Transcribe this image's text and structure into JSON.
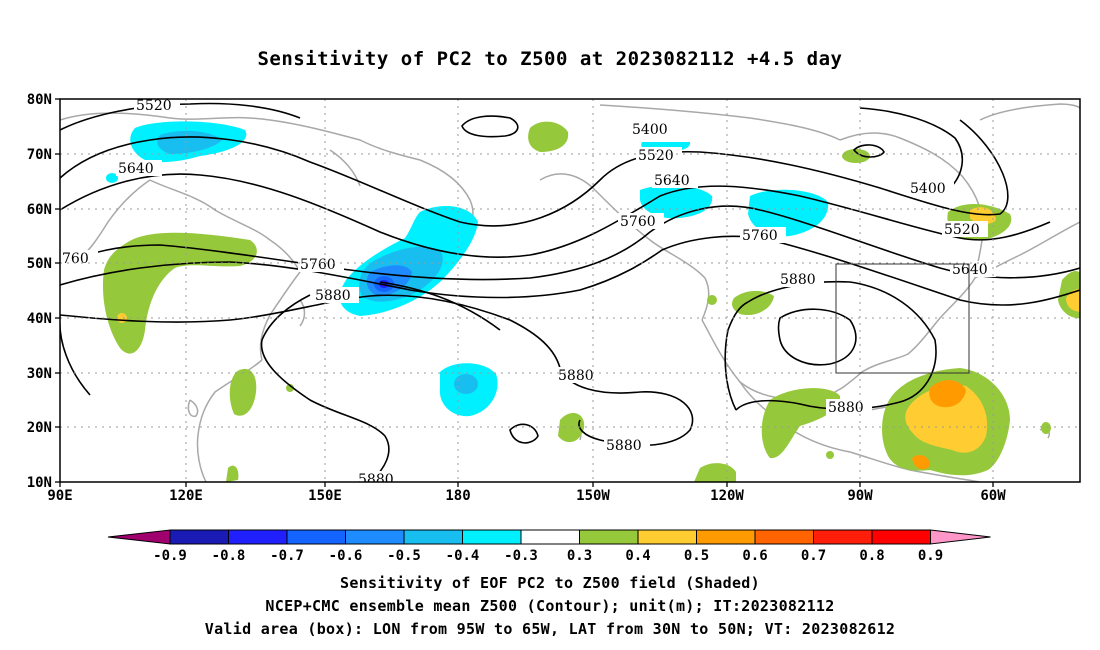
{
  "title": "Sensitivity of PC2 to Z500 at 2023082112 +4.5 day",
  "map": {
    "lat_labels": [
      "80N",
      "70N",
      "60N",
      "50N",
      "40N",
      "30N",
      "20N",
      "10N"
    ],
    "lon_labels": [
      "90E",
      "120E",
      "150E",
      "180",
      "150W",
      "120W",
      "90W",
      "60W"
    ],
    "contour_labels": [
      "5520",
      "5640",
      "760",
      "5760",
      "5880",
      "5400",
      "5520",
      "5640",
      "5760",
      "5760",
      "5880",
      "5880",
      "5880",
      "5400",
      "5520",
      "5640",
      "5880",
      "5880"
    ],
    "valid_box": {
      "lon_min": -95,
      "lon_max": -65,
      "lat_min": 30,
      "lat_max": 50
    }
  },
  "colorbar": {
    "labels": [
      "-0.9",
      "-0.8",
      "-0.7",
      "-0.6",
      "-0.5",
      "-0.4",
      "-0.3",
      "0.3",
      "0.4",
      "0.5",
      "0.6",
      "0.7",
      "0.8",
      "0.9"
    ],
    "colors": [
      "#a0006e",
      "#1a1ab4",
      "#2020ff",
      "#1464ff",
      "#1e8cff",
      "#19bef0",
      "#00f0ff",
      "#ffffff",
      "#96c83c",
      "#ffcd32",
      "#ff9b00",
      "#ff6400",
      "#ff1e0a",
      "#ff0000",
      "#ff96c8"
    ]
  },
  "caption": {
    "line1": "Sensitivity of EOF PC2 to Z500 field (Shaded)",
    "line2": "NCEP+CMC ensemble mean Z500 (Contour); unit(m); IT:2023082112",
    "line3": "Valid area (box): LON from 95W to 65W, LAT from 30N to 50N; VT: 2023082612"
  }
}
